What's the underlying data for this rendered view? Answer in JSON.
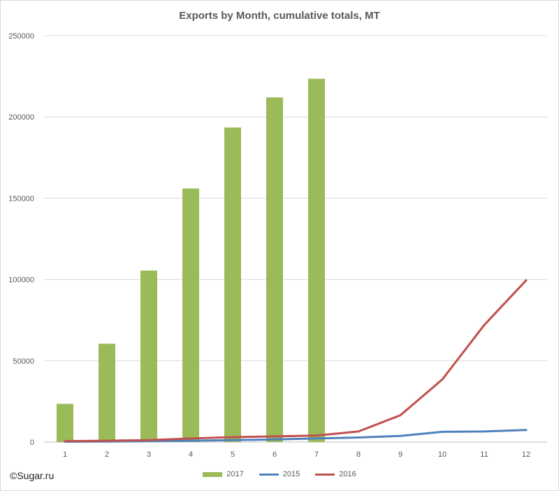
{
  "watermark": "©Sugar.ru",
  "chart_data": {
    "type": "bar+line",
    "title": "Exports by Month, cumulative totals, MT",
    "xlabel": "",
    "ylabel": "",
    "categories": [
      "1",
      "2",
      "3",
      "4",
      "5",
      "6",
      "7",
      "8",
      "9",
      "10",
      "11",
      "12"
    ],
    "ylim": [
      0,
      250000
    ],
    "yticks": [
      0,
      50000,
      100000,
      150000,
      200000,
      250000
    ],
    "grid": true,
    "legend_position": "bottom",
    "series": [
      {
        "name": "2017",
        "kind": "bar",
        "color": "#9bbb59",
        "values": [
          23500,
          60500,
          105500,
          156000,
          193500,
          212000,
          223500,
          null,
          null,
          null,
          null,
          null
        ]
      },
      {
        "name": "2015",
        "kind": "line",
        "color": "#4f81bd",
        "values": [
          200,
          300,
          500,
          800,
          1200,
          1600,
          2200,
          2800,
          3800,
          6300,
          6500,
          7400
        ]
      },
      {
        "name": "2016",
        "kind": "line",
        "color": "#c0504d",
        "values": [
          500,
          800,
          1200,
          2200,
          3000,
          3500,
          4000,
          6500,
          16500,
          38500,
          72000,
          99500
        ]
      }
    ]
  }
}
